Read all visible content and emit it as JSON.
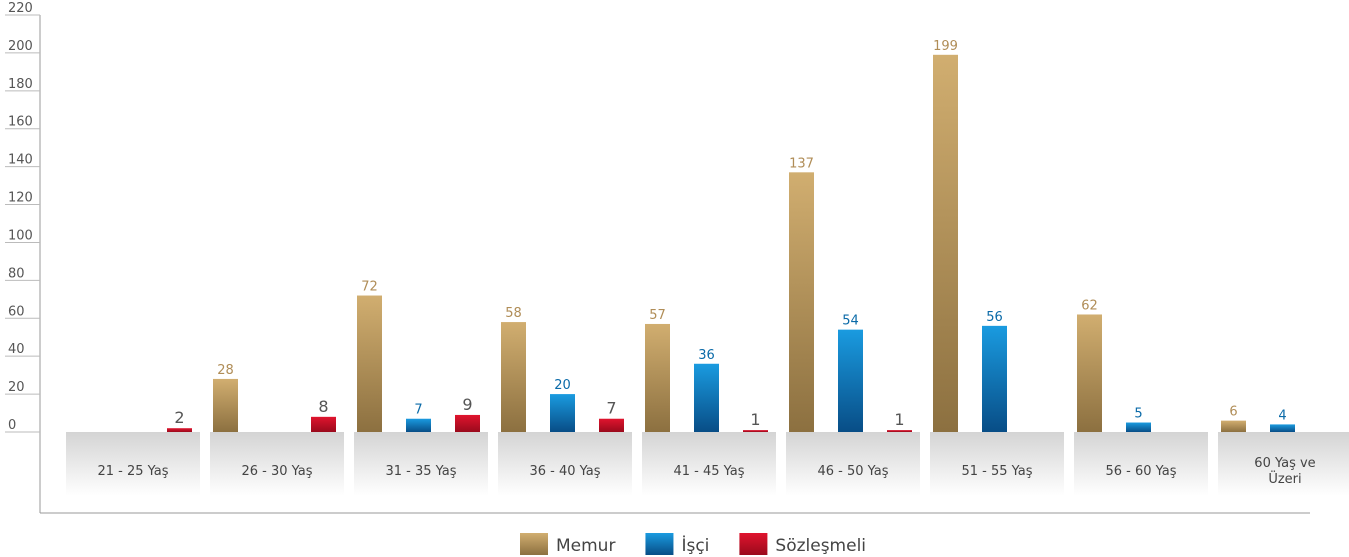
{
  "chart_data": {
    "type": "bar",
    "categories": [
      "21 - 25 Yaş",
      "26 - 30 Yaş",
      "31 - 35 Yaş",
      "36 - 40 Yaş",
      "41 - 45 Yaş",
      "46 - 50 Yaş",
      "51 - 55 Yaş",
      "56 - 60 Yaş",
      "60 Yaş ve Üzeri"
    ],
    "series": [
      {
        "name": "Memur",
        "color": "#b8985e",
        "values": [
          null,
          28,
          72,
          58,
          57,
          137,
          199,
          62,
          6
        ]
      },
      {
        "name": "İşçi",
        "color": "#0a74b8",
        "values": [
          null,
          null,
          7,
          20,
          36,
          54,
          56,
          5,
          4
        ]
      },
      {
        "name": "Sözleşmeli",
        "color": "#c40d24",
        "values": [
          2,
          8,
          9,
          7,
          1,
          1,
          null,
          null,
          null
        ]
      }
    ],
    "ylim": [
      0,
      220
    ],
    "yticks": [
      0,
      20,
      40,
      60,
      80,
      100,
      120,
      140,
      160,
      180,
      200,
      220
    ],
    "legend": "bottom"
  }
}
